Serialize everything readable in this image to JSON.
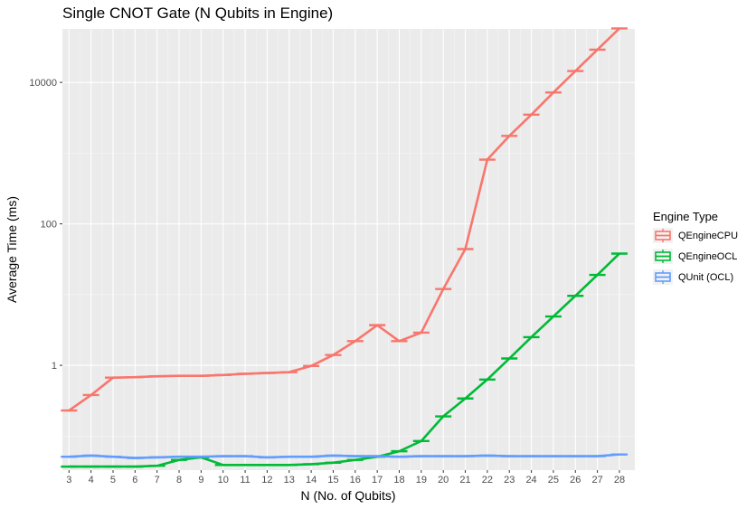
{
  "chart_data": {
    "type": "line",
    "title": "Single CNOT Gate (N Qubits in Engine)",
    "xlabel": "N (No. of Qubits)",
    "ylabel": "Average Time (ms)",
    "y_scale": "log10",
    "x": [
      3,
      4,
      5,
      6,
      7,
      8,
      9,
      10,
      11,
      12,
      13,
      14,
      15,
      16,
      17,
      18,
      19,
      20,
      21,
      22,
      23,
      24,
      25,
      26,
      27,
      28
    ],
    "xlim": [
      2.7,
      28.7
    ],
    "ylim": [
      0.033,
      57000
    ],
    "y_ticks": [
      1,
      100,
      10000
    ],
    "y_tick_labels": [
      "1",
      "100",
      "10000"
    ],
    "grid": true,
    "legend_position": "right",
    "legend_title": "Engine Type",
    "series": [
      {
        "name": "QEngineCPU",
        "color": "#F8766D",
        "values": [
          0.23,
          0.38,
          0.67,
          0.68,
          0.7,
          0.71,
          0.71,
          0.73,
          0.76,
          0.78,
          0.8,
          0.98,
          1.4,
          2.2,
          3.7,
          2.2,
          2.9,
          12,
          44,
          810,
          1750,
          3500,
          7200,
          14500,
          29000,
          58000
        ]
      },
      {
        "name": "QEngineOCL",
        "color": "#00BA38",
        "values": [
          0.037,
          0.037,
          0.037,
          0.037,
          0.038,
          0.046,
          0.05,
          0.039,
          0.039,
          0.039,
          0.039,
          0.04,
          0.042,
          0.046,
          0.051,
          0.061,
          0.085,
          0.19,
          0.34,
          0.63,
          1.25,
          2.5,
          4.9,
          9.6,
          19,
          38
        ]
      },
      {
        "name": "QUnit (OCL)",
        "color": "#619CFF",
        "values": [
          0.051,
          0.053,
          0.051,
          0.049,
          0.05,
          0.051,
          0.051,
          0.052,
          0.052,
          0.05,
          0.051,
          0.051,
          0.053,
          0.052,
          0.052,
          0.051,
          0.052,
          0.052,
          0.052,
          0.053,
          0.052,
          0.052,
          0.052,
          0.052,
          0.052,
          0.055
        ]
      }
    ]
  }
}
